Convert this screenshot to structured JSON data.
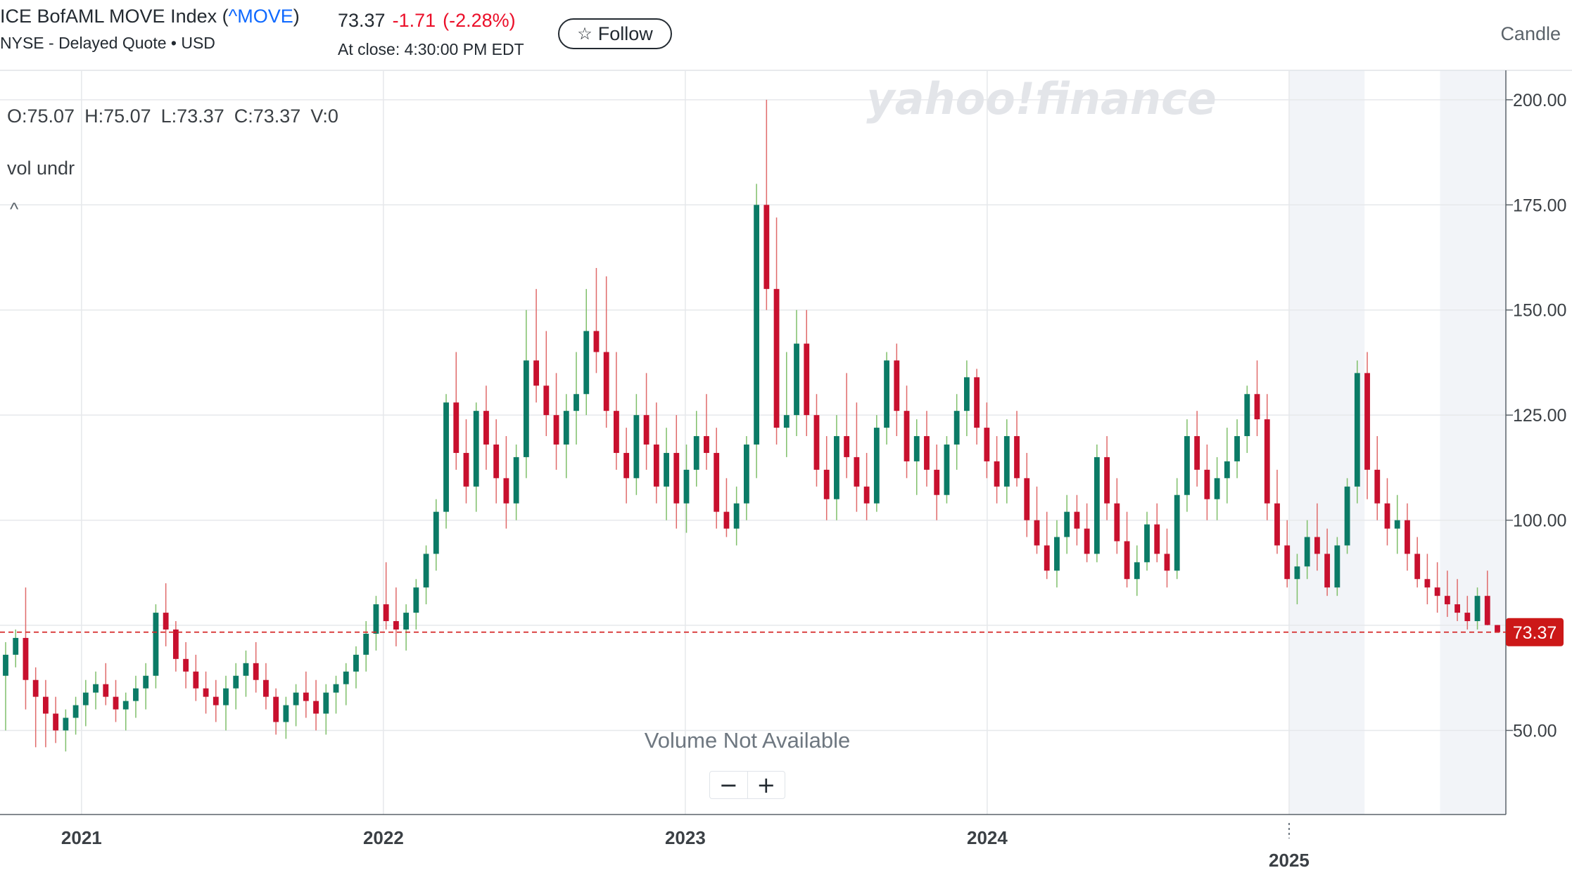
{
  "header": {
    "title_prefix": "ICE BofAML MOVE Index (",
    "symbol": "^MOVE",
    "title_suffix": ")",
    "exchange": "NYSE - Delayed Quote • USD",
    "last_price": "73.37",
    "change": "-1.71",
    "change_pct": "(-2.28%)",
    "at_close": "At close: 4:30:00 PM EDT",
    "follow_label": "Follow",
    "chart_type_label": "Candle"
  },
  "legend": {
    "open": "O:75.07",
    "high": "H:75.07",
    "low": "L:73.37",
    "close": "C:73.37",
    "volume": "V:0",
    "study_label": "vol undr",
    "collapse_glyph": "^"
  },
  "watermark": "yahoo!finance",
  "volume_note": "Volume Not Available",
  "zoom": {
    "minus": "−",
    "plus": "+"
  },
  "colors": {
    "up": "#0b7b66",
    "down": "#c8102e",
    "price_line": "#d62b2b",
    "price_label_bg": "#cc1818",
    "grid": "#e6e8eb",
    "highlight": "#f2f4f8"
  },
  "chart_data": {
    "type": "candlestick",
    "title": "",
    "y_ticks": [
      "50.00",
      "75.00",
      "100.00",
      "125.00",
      "150.00",
      "175.00",
      "200.00"
    ],
    "ylim": [
      30,
      207
    ],
    "x_ticks": [
      {
        "label": "2021",
        "t": 2021.0,
        "row": 1
      },
      {
        "label": "2022",
        "t": 2022.0,
        "row": 1
      },
      {
        "label": "2023",
        "t": 2023.0,
        "row": 1
      },
      {
        "label": "2024",
        "t": 2024.0,
        "row": 1
      },
      {
        "label": "2025",
        "t": 2025.0,
        "row": 2
      }
    ],
    "shaded_ranges": [
      [
        2025.0,
        2025.25
      ],
      [
        2025.5,
        2025.72
      ]
    ],
    "current_price": 73.37,
    "current_price_label": "73.37",
    "start": 2020.73,
    "end": 2025.69,
    "candles": [
      [
        63,
        71,
        50,
        68
      ],
      [
        68,
        74,
        65,
        72
      ],
      [
        72,
        84,
        55,
        62
      ],
      [
        62,
        65,
        46,
        58
      ],
      [
        58,
        62,
        46,
        54
      ],
      [
        54,
        58,
        47,
        50
      ],
      [
        50,
        55,
        45,
        53
      ],
      [
        53,
        58,
        49,
        56
      ],
      [
        56,
        62,
        51,
        59
      ],
      [
        59,
        64,
        55,
        61
      ],
      [
        61,
        66,
        56,
        58
      ],
      [
        58,
        62,
        52,
        55
      ],
      [
        55,
        59,
        50,
        57
      ],
      [
        57,
        63,
        53,
        60
      ],
      [
        60,
        66,
        55,
        63
      ],
      [
        63,
        80,
        60,
        78
      ],
      [
        78,
        85,
        70,
        74
      ],
      [
        74,
        76,
        64,
        67
      ],
      [
        67,
        71,
        60,
        64
      ],
      [
        64,
        68,
        57,
        60
      ],
      [
        60,
        64,
        54,
        58
      ],
      [
        58,
        62,
        52,
        56
      ],
      [
        56,
        63,
        50,
        60
      ],
      [
        60,
        66,
        55,
        63
      ],
      [
        63,
        69,
        58,
        66
      ],
      [
        66,
        71,
        59,
        62
      ],
      [
        62,
        66,
        55,
        58
      ],
      [
        58,
        60,
        49,
        52
      ],
      [
        52,
        58,
        48,
        56
      ],
      [
        56,
        61,
        51,
        59
      ],
      [
        59,
        64,
        53,
        57
      ],
      [
        57,
        62,
        50,
        54
      ],
      [
        54,
        61,
        49,
        59
      ],
      [
        59,
        63,
        54,
        61
      ],
      [
        61,
        66,
        56,
        64
      ],
      [
        64,
        70,
        60,
        68
      ],
      [
        68,
        76,
        64,
        73
      ],
      [
        73,
        82,
        69,
        80
      ],
      [
        80,
        90,
        74,
        76
      ],
      [
        76,
        84,
        70,
        74
      ],
      [
        74,
        80,
        69,
        78
      ],
      [
        78,
        86,
        74,
        84
      ],
      [
        84,
        94,
        80,
        92
      ],
      [
        92,
        105,
        88,
        102
      ],
      [
        102,
        130,
        98,
        128
      ],
      [
        128,
        140,
        112,
        116
      ],
      [
        116,
        124,
        104,
        108
      ],
      [
        108,
        128,
        102,
        126
      ],
      [
        126,
        132,
        112,
        118
      ],
      [
        118,
        124,
        104,
        110
      ],
      [
        110,
        120,
        98,
        104
      ],
      [
        104,
        118,
        100,
        115
      ],
      [
        115,
        150,
        110,
        138
      ],
      [
        138,
        155,
        128,
        132
      ],
      [
        132,
        145,
        120,
        125
      ],
      [
        125,
        135,
        112,
        118
      ],
      [
        118,
        130,
        110,
        126
      ],
      [
        126,
        140,
        118,
        130
      ],
      [
        130,
        155,
        125,
        145
      ],
      [
        145,
        160,
        135,
        140
      ],
      [
        140,
        158,
        122,
        126
      ],
      [
        126,
        140,
        112,
        116
      ],
      [
        116,
        122,
        104,
        110
      ],
      [
        110,
        130,
        106,
        125
      ],
      [
        125,
        135,
        112,
        118
      ],
      [
        118,
        128,
        104,
        108
      ],
      [
        108,
        122,
        100,
        116
      ],
      [
        116,
        125,
        98,
        104
      ],
      [
        104,
        118,
        97,
        112
      ],
      [
        112,
        126,
        108,
        120
      ],
      [
        120,
        130,
        112,
        116
      ],
      [
        116,
        122,
        98,
        102
      ],
      [
        102,
        110,
        96,
        98
      ],
      [
        98,
        108,
        94,
        104
      ],
      [
        104,
        120,
        100,
        118
      ],
      [
        118,
        180,
        110,
        175
      ],
      [
        175,
        200,
        150,
        155
      ],
      [
        155,
        172,
        118,
        122
      ],
      [
        122,
        140,
        115,
        125
      ],
      [
        125,
        150,
        120,
        142
      ],
      [
        142,
        150,
        120,
        125
      ],
      [
        125,
        130,
        108,
        112
      ],
      [
        112,
        120,
        100,
        105
      ],
      [
        105,
        125,
        100,
        120
      ],
      [
        120,
        135,
        110,
        115
      ],
      [
        115,
        128,
        102,
        108
      ],
      [
        108,
        116,
        100,
        104
      ],
      [
        104,
        125,
        102,
        122
      ],
      [
        122,
        140,
        118,
        138
      ],
      [
        138,
        142,
        120,
        126
      ],
      [
        126,
        132,
        110,
        114
      ],
      [
        114,
        124,
        106,
        120
      ],
      [
        120,
        126,
        108,
        112
      ],
      [
        112,
        118,
        100,
        106
      ],
      [
        106,
        120,
        104,
        118
      ],
      [
        118,
        130,
        112,
        126
      ],
      [
        126,
        138,
        120,
        134
      ],
      [
        134,
        136,
        118,
        122
      ],
      [
        122,
        128,
        110,
        114
      ],
      [
        114,
        120,
        104,
        108
      ],
      [
        108,
        124,
        104,
        120
      ],
      [
        120,
        126,
        108,
        110
      ],
      [
        110,
        116,
        96,
        100
      ],
      [
        100,
        108,
        92,
        94
      ],
      [
        94,
        102,
        86,
        88
      ],
      [
        88,
        100,
        84,
        96
      ],
      [
        96,
        106,
        92,
        102
      ],
      [
        102,
        106,
        94,
        98
      ],
      [
        98,
        104,
        90,
        92
      ],
      [
        92,
        118,
        90,
        115
      ],
      [
        115,
        120,
        100,
        104
      ],
      [
        104,
        110,
        92,
        95
      ],
      [
        95,
        102,
        84,
        86
      ],
      [
        86,
        94,
        82,
        90
      ],
      [
        90,
        102,
        88,
        99
      ],
      [
        99,
        104,
        90,
        92
      ],
      [
        92,
        98,
        84,
        88
      ],
      [
        88,
        110,
        86,
        106
      ],
      [
        106,
        124,
        102,
        120
      ],
      [
        120,
        126,
        108,
        112
      ],
      [
        112,
        118,
        100,
        105
      ],
      [
        105,
        115,
        100,
        110
      ],
      [
        110,
        122,
        104,
        114
      ],
      [
        114,
        124,
        110,
        120
      ],
      [
        120,
        132,
        116,
        130
      ],
      [
        130,
        138,
        120,
        124
      ],
      [
        124,
        130,
        100,
        104
      ],
      [
        104,
        112,
        92,
        94
      ],
      [
        94,
        100,
        84,
        86
      ],
      [
        86,
        92,
        80,
        89
      ],
      [
        89,
        100,
        86,
        96
      ],
      [
        96,
        104,
        88,
        92
      ],
      [
        92,
        98,
        82,
        84
      ],
      [
        84,
        96,
        82,
        94
      ],
      [
        94,
        110,
        92,
        108
      ],
      [
        108,
        138,
        104,
        135
      ],
      [
        135,
        140,
        105,
        112
      ],
      [
        112,
        120,
        100,
        104
      ],
      [
        104,
        110,
        94,
        98
      ],
      [
        98,
        106,
        92,
        100
      ],
      [
        100,
        104,
        88,
        92
      ],
      [
        92,
        96,
        84,
        86
      ],
      [
        86,
        92,
        80,
        84
      ],
      [
        84,
        90,
        78,
        82
      ],
      [
        82,
        88,
        77,
        80
      ],
      [
        80,
        86,
        76,
        78
      ],
      [
        78,
        82,
        74,
        76
      ],
      [
        76,
        84,
        74,
        82
      ],
      [
        82,
        88,
        75,
        75.07
      ],
      [
        75.07,
        75.07,
        73.37,
        73.37
      ]
    ]
  }
}
